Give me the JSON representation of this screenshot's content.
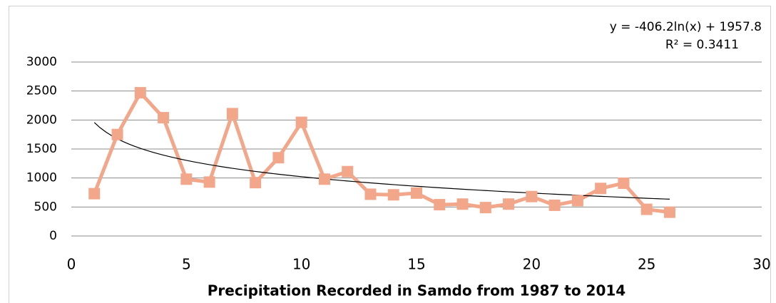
{
  "chart_data": {
    "type": "line",
    "xlabel": "Precipitation Recorded in Samdo from 1987 to 2014",
    "x": [
      1,
      2,
      3,
      4,
      5,
      6,
      7,
      8,
      9,
      10,
      11,
      12,
      13,
      14,
      15,
      16,
      17,
      18,
      19,
      20,
      21,
      22,
      23,
      24,
      25,
      26
    ],
    "series": [
      {
        "color": "#f2a68a",
        "values": [
          730,
          1750,
          2470,
          2040,
          980,
          930,
          2110,
          920,
          1350,
          1960,
          980,
          1110,
          720,
          710,
          740,
          540,
          550,
          490,
          550,
          680,
          530,
          610,
          820,
          910,
          460,
          410
        ]
      }
    ],
    "trendline": {
      "equation": "y = -406.2ln(x) + 1957.8",
      "r2": "R² = 0.3411",
      "a": -406.2,
      "b": 1957.8
    },
    "xlim": [
      0,
      30
    ],
    "xticks": [
      0,
      5,
      10,
      15,
      20,
      25,
      30
    ],
    "ylim": [
      0,
      3000
    ],
    "yticks": [
      0,
      500,
      1000,
      1500,
      2000,
      2500,
      3000
    ],
    "grid": true
  }
}
